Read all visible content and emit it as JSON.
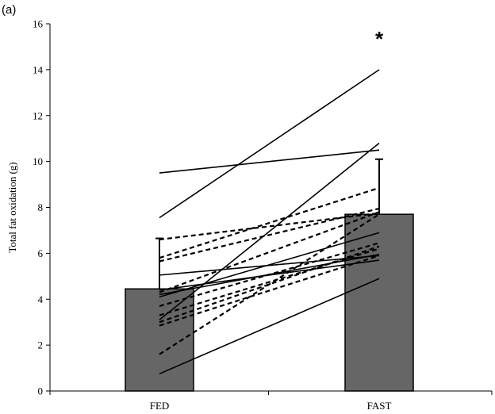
{
  "panel_label": "(a)",
  "chart_data": {
    "type": "bar",
    "title": "",
    "xlabel": "",
    "ylabel": "Total fat oxidation (g)",
    "ylim": [
      0,
      16
    ],
    "yticks": [
      0,
      2,
      4,
      6,
      8,
      10,
      12,
      14,
      16
    ],
    "categories": [
      "FED",
      "FAST"
    ],
    "values": [
      4.45,
      7.7
    ],
    "error_upper": [
      6.65,
      10.1
    ],
    "bar_color": "#666666",
    "significance_marker": "*",
    "significance_on": "FAST",
    "grid": false,
    "individual_lines": [
      {
        "style": "solid",
        "values": [
          9.5,
          10.5
        ]
      },
      {
        "style": "solid",
        "values": [
          7.55,
          14.0
        ]
      },
      {
        "style": "solid",
        "values": [
          3.1,
          10.8
        ]
      },
      {
        "style": "solid",
        "values": [
          5.05,
          5.9
        ]
      },
      {
        "style": "solid",
        "values": [
          4.1,
          6.9
        ]
      },
      {
        "style": "solid",
        "values": [
          4.2,
          5.95
        ]
      },
      {
        "style": "solid",
        "values": [
          4.4,
          5.7
        ]
      },
      {
        "style": "solid",
        "values": [
          0.75,
          4.9
        ]
      },
      {
        "style": "dashed",
        "values": [
          6.6,
          7.75
        ]
      },
      {
        "style": "dashed",
        "values": [
          5.8,
          8.85
        ]
      },
      {
        "style": "dashed",
        "values": [
          5.65,
          7.95
        ]
      },
      {
        "style": "dashed",
        "values": [
          4.3,
          7.8
        ]
      },
      {
        "style": "dashed",
        "values": [
          3.7,
          6.45
        ]
      },
      {
        "style": "dashed",
        "values": [
          3.3,
          6.2
        ]
      },
      {
        "style": "dashed",
        "values": [
          3.0,
          6.3
        ]
      },
      {
        "style": "dashed",
        "values": [
          2.85,
          5.9
        ]
      },
      {
        "style": "dashed",
        "values": [
          1.6,
          7.7
        ]
      }
    ]
  }
}
